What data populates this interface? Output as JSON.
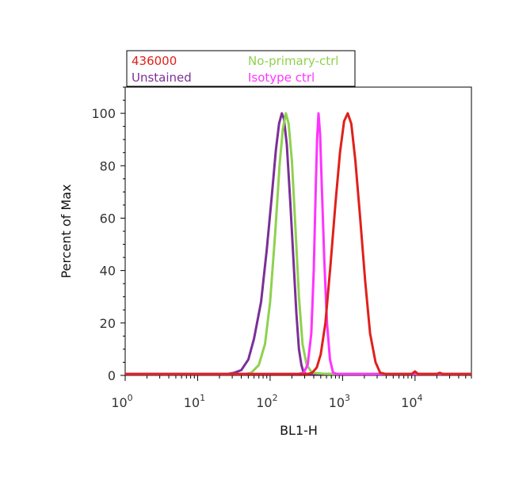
{
  "chart_data": {
    "type": "line",
    "title": "",
    "xlabel": "BL1-H",
    "ylabel": "Percent of Max",
    "x_scale": "log",
    "xlim": [
      1,
      60000
    ],
    "ylim": [
      0,
      110
    ],
    "x_ticks": [
      {
        "value": 1,
        "base": "10",
        "exp": "0"
      },
      {
        "value": 10,
        "base": "10",
        "exp": "1"
      },
      {
        "value": 100,
        "base": "10",
        "exp": "2"
      },
      {
        "value": 1000,
        "base": "10",
        "exp": "3"
      },
      {
        "value": 10000,
        "base": "10",
        "exp": "4"
      }
    ],
    "y_ticks": [
      0,
      20,
      40,
      60,
      80,
      100
    ],
    "grid": false,
    "legend_position": "top-left, above plot",
    "series": [
      {
        "name": "Unstained",
        "color": "#7b2f96",
        "points": [
          [
            1,
            0.5
          ],
          [
            25,
            0.5
          ],
          [
            32,
            1
          ],
          [
            40,
            2
          ],
          [
            50,
            6
          ],
          [
            60,
            14
          ],
          [
            75,
            28
          ],
          [
            90,
            48
          ],
          [
            105,
            68
          ],
          [
            120,
            86
          ],
          [
            133,
            96
          ],
          [
            145,
            100
          ],
          [
            155,
            98
          ],
          [
            170,
            88
          ],
          [
            190,
            66
          ],
          [
            210,
            44
          ],
          [
            230,
            24
          ],
          [
            250,
            10
          ],
          [
            270,
            4
          ],
          [
            290,
            1
          ],
          [
            320,
            0.5
          ],
          [
            60000,
            0.5
          ]
        ]
      },
      {
        "name": "No-primary-ctrl",
        "color": "#8fd14f",
        "points": [
          [
            1,
            0.5
          ],
          [
            45,
            0.5
          ],
          [
            55,
            1
          ],
          [
            70,
            4
          ],
          [
            85,
            12
          ],
          [
            100,
            28
          ],
          [
            118,
            55
          ],
          [
            135,
            80
          ],
          [
            150,
            94
          ],
          [
            165,
            100
          ],
          [
            180,
            96
          ],
          [
            200,
            82
          ],
          [
            225,
            55
          ],
          [
            250,
            30
          ],
          [
            280,
            12
          ],
          [
            320,
            4
          ],
          [
            380,
            1
          ],
          [
            600,
            0.5
          ],
          [
            60000,
            0.5
          ]
        ]
      },
      {
        "name": "Isotype ctrl",
        "color": "#ff33ff",
        "points": [
          [
            1,
            0.5
          ],
          [
            240,
            0.5
          ],
          [
            290,
            1
          ],
          [
            330,
            4
          ],
          [
            370,
            16
          ],
          [
            400,
            40
          ],
          [
            425,
            70
          ],
          [
            445,
            90
          ],
          [
            465,
            100
          ],
          [
            490,
            92
          ],
          [
            520,
            70
          ],
          [
            560,
            44
          ],
          [
            610,
            20
          ],
          [
            670,
            6
          ],
          [
            740,
            1
          ],
          [
            850,
            0.5
          ],
          [
            60000,
            0.5
          ]
        ]
      },
      {
        "name": "436000",
        "color": "#e0201b",
        "points": [
          [
            1,
            0.5
          ],
          [
            330,
            0.5
          ],
          [
            380,
            1
          ],
          [
            440,
            3
          ],
          [
            500,
            8
          ],
          [
            580,
            20
          ],
          [
            680,
            42
          ],
          [
            800,
            66
          ],
          [
            920,
            85
          ],
          [
            1050,
            97
          ],
          [
            1180,
            100
          ],
          [
            1320,
            96
          ],
          [
            1500,
            82
          ],
          [
            1750,
            60
          ],
          [
            2050,
            36
          ],
          [
            2400,
            16
          ],
          [
            2850,
            5
          ],
          [
            3300,
            1
          ],
          [
            4000,
            0.5
          ],
          [
            9000,
            0.5
          ],
          [
            10000,
            1.5
          ],
          [
            11000,
            0.5
          ],
          [
            20000,
            0.5
          ],
          [
            22000,
            1
          ],
          [
            24000,
            0.5
          ],
          [
            60000,
            0.5
          ]
        ]
      }
    ],
    "legend": {
      "entries": [
        {
          "name": "436000",
          "color": "#e0201b"
        },
        {
          "name": "No-primary-ctrl",
          "color": "#8fd14f"
        },
        {
          "name": "Unstained",
          "color": "#7b2f96"
        },
        {
          "name": "Isotype ctrl",
          "color": "#ff33ff"
        }
      ]
    }
  }
}
